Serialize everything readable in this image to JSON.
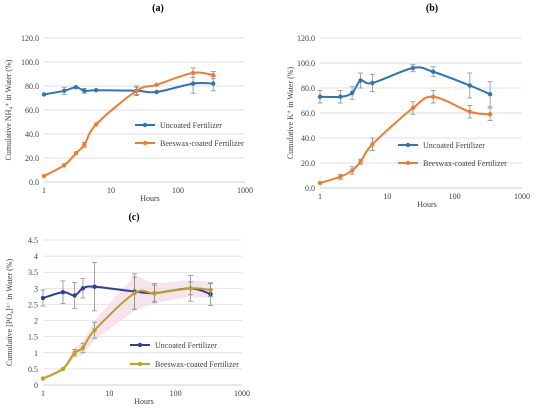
{
  "colors": {
    "uncoated_blue": "#2E75B6",
    "beeswax_orange": "#ED7D31",
    "uncoated_navy": "#2F3E9E",
    "beeswax_olive": "#B8A21E",
    "grid": "#D9D9D9",
    "error": "#8C8C8C",
    "shade": "#F3D9E8"
  },
  "chart_data": [
    {
      "panel_label": "(a)",
      "type": "line",
      "x_scale": "log",
      "xlabel": "Hours",
      "ylabel": "Cumulative NH₄⁺ in Water (%)",
      "xlim": [
        1,
        1000
      ],
      "ylim": [
        0,
        120
      ],
      "yticks": [
        "0.0",
        "20.0",
        "40.0",
        "60.0",
        "80.0",
        "100.0",
        "120.0"
      ],
      "xticks": [
        "1",
        "10",
        "100",
        "1000"
      ],
      "legend_position": "right",
      "series": [
        {
          "name": "Uncoated Fertilizer",
          "color": "#2E75B6",
          "x": [
            1,
            2,
            3,
            4,
            6,
            24,
            48,
            168,
            336
          ],
          "y": [
            73,
            76,
            79,
            76,
            76.5,
            76,
            75,
            82,
            82
          ],
          "err": [
            0,
            3,
            0,
            2,
            0,
            4,
            0,
            8,
            6
          ]
        },
        {
          "name": "Beeswax-coated Fertilizer",
          "color": "#ED7D31",
          "x": [
            1,
            2,
            3,
            4,
            6,
            24,
            48,
            168,
            336
          ],
          "y": [
            5,
            14,
            24,
            31,
            48,
            76,
            81,
            91,
            89
          ],
          "err": [
            0,
            0,
            0,
            2,
            0,
            3,
            0,
            4,
            3
          ]
        }
      ]
    },
    {
      "panel_label": "(b)",
      "type": "line",
      "x_scale": "log",
      "xlabel": "Hours",
      "ylabel": "Cumulative K⁺ in Water (%)",
      "xlim": [
        1,
        1000
      ],
      "ylim": [
        0,
        120
      ],
      "yticks": [
        "0.0",
        "20.0",
        "40.0",
        "60.0",
        "80.0",
        "100.0",
        "120.0"
      ],
      "xticks": [
        "1",
        "10",
        "100",
        "1000"
      ],
      "legend_position": "right",
      "series": [
        {
          "name": "Uncoated Fertilizer",
          "color": "#2E75B6",
          "x": [
            1,
            2,
            3,
            4,
            6,
            24,
            48,
            168,
            336
          ],
          "y": [
            73,
            73,
            76,
            86,
            84,
            96,
            93,
            82,
            75
          ],
          "err": [
            5,
            5,
            5,
            6,
            7,
            3,
            4,
            10,
            10
          ]
        },
        {
          "name": "Beeswax-coated Fertilizer",
          "color": "#ED7D31",
          "x": [
            1,
            2,
            3,
            4,
            6,
            24,
            48,
            168,
            336
          ],
          "y": [
            4,
            9,
            14,
            21,
            35,
            64,
            73,
            61,
            59
          ],
          "err": [
            0,
            2,
            3,
            2,
            5,
            5,
            5,
            5,
            5
          ]
        }
      ]
    },
    {
      "panel_label": "(c)",
      "type": "line",
      "x_scale": "log",
      "xlabel": "Hours",
      "ylabel": "Cumulative [PO₄]³⁻ in Water (%)",
      "xlim": [
        1,
        1000
      ],
      "ylim": [
        0,
        4.5
      ],
      "yticks": [
        "0",
        "0.5",
        "1",
        "1.5",
        "2",
        "2.5",
        "3",
        "3.5",
        "4",
        "4.5"
      ],
      "xticks": [
        "1",
        "10",
        "100",
        "1000"
      ],
      "legend_position": "right",
      "series": [
        {
          "name": "Uncoated Fertilizer",
          "color": "#2F3E9E",
          "x": [
            1,
            2,
            3,
            4,
            6,
            24,
            48,
            168,
            336
          ],
          "y": [
            2.7,
            2.88,
            2.78,
            3.0,
            3.05,
            2.9,
            2.85,
            3.0,
            2.82
          ],
          "err": [
            0.25,
            0.35,
            0.4,
            0.3,
            0.75,
            0.55,
            0.3,
            0.4,
            0.35
          ]
        },
        {
          "name": "Beeswax-coated Fertilizer",
          "color": "#B8A21E",
          "x": [
            1,
            2,
            3,
            4,
            6,
            24,
            48,
            168,
            336
          ],
          "y": [
            0.2,
            0.5,
            1.0,
            1.15,
            1.7,
            2.85,
            2.85,
            3.0,
            2.95
          ],
          "err": [
            0,
            0,
            0.1,
            0.15,
            0.25,
            0.5,
            0.25,
            0.2,
            0.2
          ]
        }
      ]
    }
  ]
}
